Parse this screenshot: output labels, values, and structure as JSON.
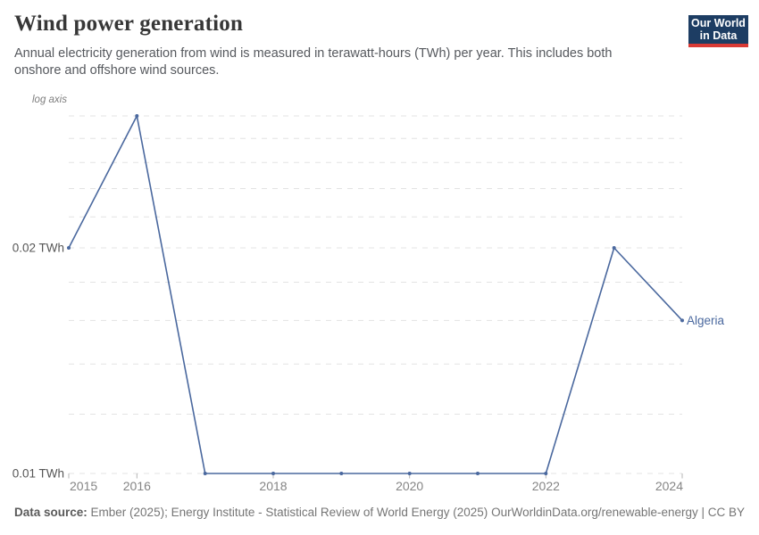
{
  "header": {
    "title": "Wind power generation",
    "subtitle": "Annual electricity generation from wind is measured in terawatt-hours (TWh) per year. This includes both onshore and offshore wind sources.",
    "logo": {
      "line1": "Our World",
      "line2": "in Data",
      "bg_color": "#1d3d63",
      "bar_color": "#d93a35"
    }
  },
  "chart_data": {
    "type": "line",
    "title": "Wind power generation",
    "scale_note": "log axis",
    "y_unit": "TWh",
    "x": [
      2015,
      2016,
      2017,
      2018,
      2019,
      2020,
      2021,
      2022,
      2023,
      2024
    ],
    "series": [
      {
        "name": "Algeria",
        "color": "#4a689e",
        "values": [
          0.02,
          0.03,
          0.01,
          0.01,
          0.01,
          0.01,
          0.01,
          0.01,
          0.02,
          0.016
        ]
      }
    ],
    "x_range": [
      2015,
      2024
    ],
    "y_range": [
      0.01,
      0.03
    ],
    "y_scale": "log",
    "x_ticks": [
      2015,
      2016,
      2018,
      2020,
      2022,
      2024
    ],
    "y_ticks": [
      {
        "value": 0.02,
        "label": "0.02 TWh"
      },
      {
        "value": 0.01,
        "label": "0.01 TWh"
      }
    ],
    "y_gridlines": [
      0.01,
      0.012,
      0.014,
      0.016,
      0.018,
      0.02,
      0.022,
      0.024,
      0.026,
      0.028,
      0.03
    ],
    "grid": "dashed",
    "legend_position": "end-of-line-label"
  },
  "footer": {
    "source_label": "Data source:",
    "source_text": " Ember (2025); Energy Institute - Statistical Review of World Energy (2025)",
    "attribution": "OurWorldinData.org/renewable-energy | CC BY"
  },
  "colors": {
    "line": "#4a689e",
    "grid": "#e3e3e3",
    "tick": "#b5b5b5",
    "x_label": "#858585",
    "y_label": "#565656",
    "note": "#7d7d7d",
    "logo_bg": "#1d3d63",
    "logo_bar": "#d93a35"
  }
}
